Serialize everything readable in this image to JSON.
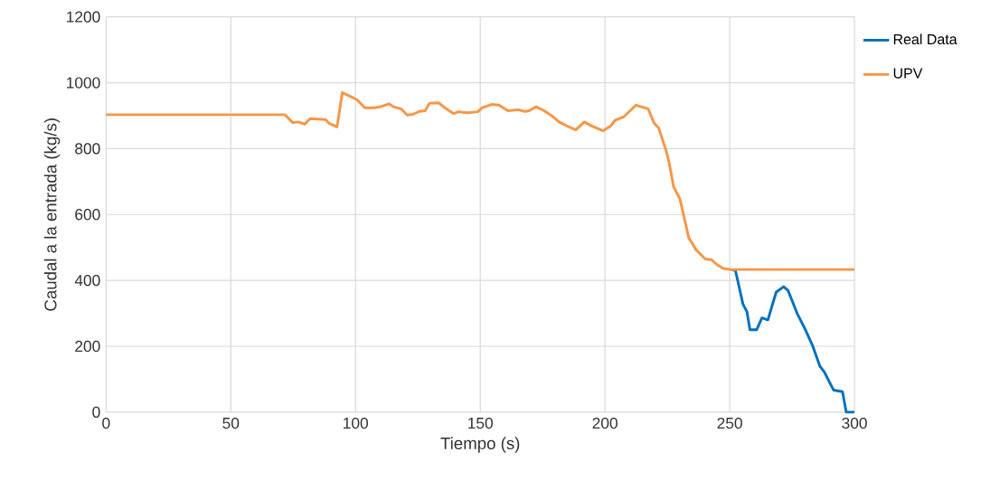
{
  "chart_data": {
    "type": "line",
    "xlabel": "Tiempo (s)",
    "ylabel": "Caudal a la entrada (kg/s)",
    "xlim": [
      0,
      300
    ],
    "ylim": [
      0,
      1200
    ],
    "xticks": [
      0,
      50,
      100,
      150,
      200,
      250,
      300
    ],
    "yticks": [
      0,
      200,
      400,
      600,
      800,
      1000,
      1200
    ],
    "grid": true,
    "legend": "top right",
    "marker": "none",
    "line_style": "solid",
    "x": [
      0,
      71.7,
      74.8,
      77.2,
      79.6,
      81.8,
      88,
      89.3,
      92.6,
      94.7,
      98.3,
      100.7,
      103.7,
      107.4,
      110,
      113.4,
      115.2,
      118.2,
      120.7,
      123,
      125.5,
      127.9,
      129.7,
      133.3,
      135.8,
      139.4,
      141.2,
      144.8,
      149,
      150.8,
      154.5,
      157.5,
      161.1,
      165.3,
      167.8,
      169.6,
      172.4,
      175.6,
      178.6,
      181.6,
      184.7,
      188.3,
      191.7,
      194.9,
      199.2,
      202.2,
      204,
      207.6,
      212.4,
      217.3,
      219.7,
      221.5,
      224.5,
      225.7,
      227.5,
      230,
      233.6,
      236.6,
      240.2,
      242.6,
      245,
      247.5,
      251.1,
      252.3,
      255.3,
      256.9,
      258.1,
      260.8,
      262.9,
      265.3,
      268.6,
      271.6,
      273.4,
      277,
      280.1,
      283.1,
      286.1,
      287.9,
      291.6,
      295.2,
      296.7,
      300
    ],
    "series": [
      {
        "name": "Real Data",
        "color": "#0070c0",
        "values": [
          null,
          null,
          null,
          null,
          null,
          null,
          null,
          null,
          null,
          null,
          null,
          null,
          null,
          null,
          null,
          null,
          null,
          null,
          null,
          null,
          null,
          null,
          null,
          null,
          null,
          null,
          null,
          null,
          null,
          null,
          null,
          null,
          null,
          null,
          null,
          null,
          null,
          null,
          null,
          null,
          null,
          null,
          null,
          null,
          null,
          null,
          null,
          null,
          null,
          null,
          null,
          null,
          null,
          null,
          null,
          null,
          null,
          null,
          null,
          null,
          null,
          null,
          432,
          430,
          328,
          305,
          250,
          250,
          286,
          280,
          364,
          381,
          369,
          300,
          254,
          204,
          140,
          122,
          67,
          62,
          0,
          0
        ]
      },
      {
        "name": "UPV",
        "color": "#f79646",
        "values": [
          903,
          903,
          879,
          881,
          874,
          891,
          888,
          877,
          866,
          970,
          957,
          948,
          924,
          924,
          927,
          936,
          927,
          921,
          902,
          904,
          913,
          915,
          938,
          939,
          924,
          906,
          912,
          909,
          912,
          924,
          934,
          932,
          915,
          918,
          913,
          915,
          927,
          915,
          900,
          881,
          869,
          857,
          881,
          868,
          854,
          868,
          886,
          897,
          932,
          921,
          877,
          863,
          794,
          758,
          684,
          648,
          529,
          492,
          465,
          463,
          447,
          436,
          432,
          433,
          433,
          433,
          433,
          433,
          433,
          433,
          433,
          433,
          433,
          433,
          433,
          433,
          433,
          433,
          433,
          433,
          433,
          433
        ]
      }
    ]
  }
}
